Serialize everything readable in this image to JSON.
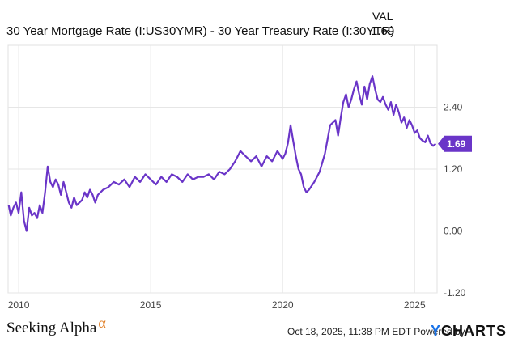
{
  "header": {
    "title": "30 Year Mortgage Rate (I:US30YMR) - 30 Year Treasury Rate (I:30YTR)",
    "column_label": "VAL",
    "current_value": "1.69"
  },
  "footer": {
    "timestamp": "Oct 18, 2025, 11:38 PM EDT Powered by",
    "brand_left": "Seeking Alpha",
    "brand_left_symbol": "α",
    "brand_right_prefix": "Y",
    "brand_right": "CHARTS"
  },
  "colors": {
    "line": "#6a35c8",
    "grid": "#e6e6e6",
    "badge": "#6a35c8"
  },
  "chart_data": {
    "type": "line",
    "title": "30 Year Mortgage Rate (I:US30YMR) - 30 Year Treasury Rate (I:30YTR)",
    "xlabel": "",
    "ylabel": "",
    "xlim": [
      2009.6,
      2025.85
    ],
    "ylim": [
      -1.2,
      3.6
    ],
    "x_ticks": [
      {
        "value": 2010,
        "label": "2010"
      },
      {
        "value": 2015,
        "label": "2015"
      },
      {
        "value": 2020,
        "label": "2020"
      },
      {
        "value": 2025,
        "label": "2025"
      }
    ],
    "y_ticks": [
      {
        "value": 2.4,
        "label": "2.40"
      },
      {
        "value": 1.2,
        "label": "1.20"
      },
      {
        "value": 0.0,
        "label": "0.00"
      },
      {
        "value": -1.2,
        "label": "-1.20"
      }
    ],
    "grid": true,
    "last_value_label": "1.69",
    "series": [
      {
        "name": "",
        "x": [
          2009.62,
          2009.7,
          2009.8,
          2009.9,
          2010.0,
          2010.1,
          2010.2,
          2010.3,
          2010.4,
          2010.5,
          2010.6,
          2010.7,
          2010.8,
          2010.9,
          2011.0,
          2011.1,
          2011.2,
          2011.3,
          2011.4,
          2011.5,
          2011.6,
          2011.7,
          2011.8,
          2011.9,
          2012.0,
          2012.1,
          2012.2,
          2012.3,
          2012.4,
          2012.5,
          2012.6,
          2012.7,
          2012.8,
          2012.9,
          2013.0,
          2013.2,
          2013.4,
          2013.6,
          2013.8,
          2014.0,
          2014.2,
          2014.4,
          2014.6,
          2014.8,
          2015.0,
          2015.2,
          2015.4,
          2015.6,
          2015.8,
          2016.0,
          2016.2,
          2016.4,
          2016.6,
          2016.8,
          2017.0,
          2017.2,
          2017.4,
          2017.6,
          2017.8,
          2018.0,
          2018.2,
          2018.4,
          2018.6,
          2018.8,
          2019.0,
          2019.2,
          2019.4,
          2019.6,
          2019.8,
          2020.0,
          2020.1,
          2020.2,
          2020.3,
          2020.4,
          2020.5,
          2020.6,
          2020.7,
          2020.8,
          2020.9,
          2021.0,
          2021.2,
          2021.4,
          2021.6,
          2021.8,
          2022.0,
          2022.1,
          2022.2,
          2022.3,
          2022.4,
          2022.5,
          2022.6,
          2022.7,
          2022.8,
          2022.9,
          2023.0,
          2023.1,
          2023.2,
          2023.3,
          2023.4,
          2023.5,
          2023.6,
          2023.7,
          2023.8,
          2023.9,
          2024.0,
          2024.1,
          2024.2,
          2024.3,
          2024.4,
          2024.5,
          2024.6,
          2024.7,
          2024.8,
          2024.9,
          2025.0,
          2025.1,
          2025.2,
          2025.3,
          2025.4,
          2025.5,
          2025.6,
          2025.7,
          2025.8
        ],
        "values": [
          0.5,
          0.3,
          0.45,
          0.55,
          0.35,
          0.75,
          0.2,
          0.0,
          0.45,
          0.3,
          0.35,
          0.25,
          0.5,
          0.35,
          0.75,
          1.25,
          0.95,
          0.85,
          1.0,
          0.9,
          0.7,
          0.95,
          0.75,
          0.55,
          0.45,
          0.65,
          0.5,
          0.55,
          0.6,
          0.75,
          0.65,
          0.8,
          0.7,
          0.55,
          0.7,
          0.8,
          0.85,
          0.95,
          0.9,
          1.0,
          0.85,
          1.05,
          0.95,
          1.1,
          1.0,
          0.9,
          1.05,
          0.95,
          1.1,
          1.05,
          0.95,
          1.1,
          1.0,
          1.05,
          1.05,
          1.1,
          1.0,
          1.15,
          1.1,
          1.2,
          1.35,
          1.55,
          1.45,
          1.35,
          1.45,
          1.25,
          1.45,
          1.35,
          1.55,
          1.4,
          1.5,
          1.7,
          2.05,
          1.75,
          1.45,
          1.2,
          1.1,
          0.85,
          0.75,
          0.8,
          0.95,
          1.15,
          1.5,
          2.05,
          2.15,
          1.85,
          2.2,
          2.5,
          2.65,
          2.4,
          2.55,
          2.75,
          2.9,
          2.65,
          2.45,
          2.8,
          2.55,
          2.85,
          3.0,
          2.75,
          2.55,
          2.5,
          2.6,
          2.45,
          2.35,
          2.5,
          2.25,
          2.45,
          2.3,
          2.1,
          2.2,
          2.0,
          2.15,
          2.05,
          1.9,
          1.95,
          1.8,
          1.75,
          1.72,
          1.85,
          1.7,
          1.65,
          1.69
        ]
      }
    ]
  }
}
